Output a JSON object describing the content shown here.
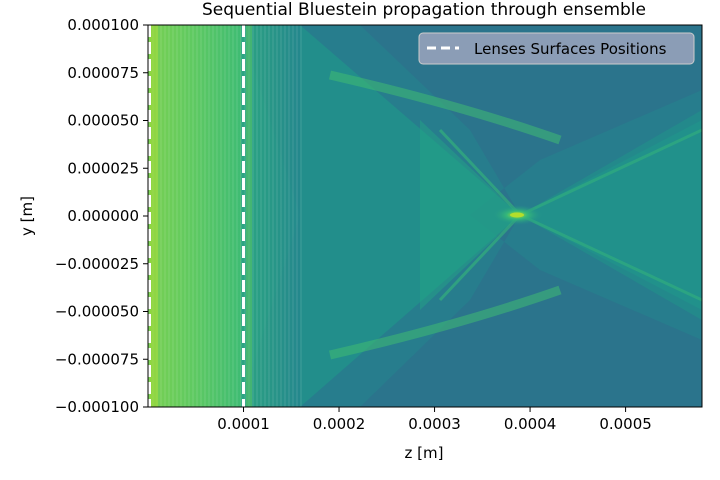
{
  "chart_data": {
    "type": "heatmap",
    "title": "Sequential Bluestein propagation through ensemble",
    "xlabel": "z [m]",
    "ylabel": "y [m]",
    "xlim": [
      0.0,
      0.00058
    ],
    "ylim": [
      -0.0001,
      0.0001
    ],
    "x_ticks": [
      {
        "value": 0.0001,
        "label": "0.0001"
      },
      {
        "value": 0.0002,
        "label": "0.0002"
      },
      {
        "value": 0.0003,
        "label": "0.0003"
      },
      {
        "value": 0.0004,
        "label": "0.0004"
      },
      {
        "value": 0.0005,
        "label": "0.0005"
      }
    ],
    "y_ticks": [
      {
        "value": 0.0001,
        "label": "0.000100"
      },
      {
        "value": 7.5e-05,
        "label": "0.000075"
      },
      {
        "value": 5e-05,
        "label": "0.000050"
      },
      {
        "value": 2.5e-05,
        "label": "0.000025"
      },
      {
        "value": 0.0,
        "label": "0.000000"
      },
      {
        "value": -2.5e-05,
        "label": "−0.000025"
      },
      {
        "value": -5e-05,
        "label": "−0.000050"
      },
      {
        "value": -7.5e-05,
        "label": "−0.000075"
      },
      {
        "value": -0.0001,
        "label": "−0.000100"
      }
    ],
    "colormap": "viridis",
    "focus_point": {
      "z": 0.00039,
      "y": 0.0
    },
    "lens_surface_positions": [
      0.0,
      0.0001
    ],
    "legend": {
      "placement": "top-right",
      "entries": [
        {
          "label": "Lenses Surfaces Positions",
          "style": "dashed",
          "color": "#ffffff"
        }
      ]
    },
    "grid": false
  }
}
